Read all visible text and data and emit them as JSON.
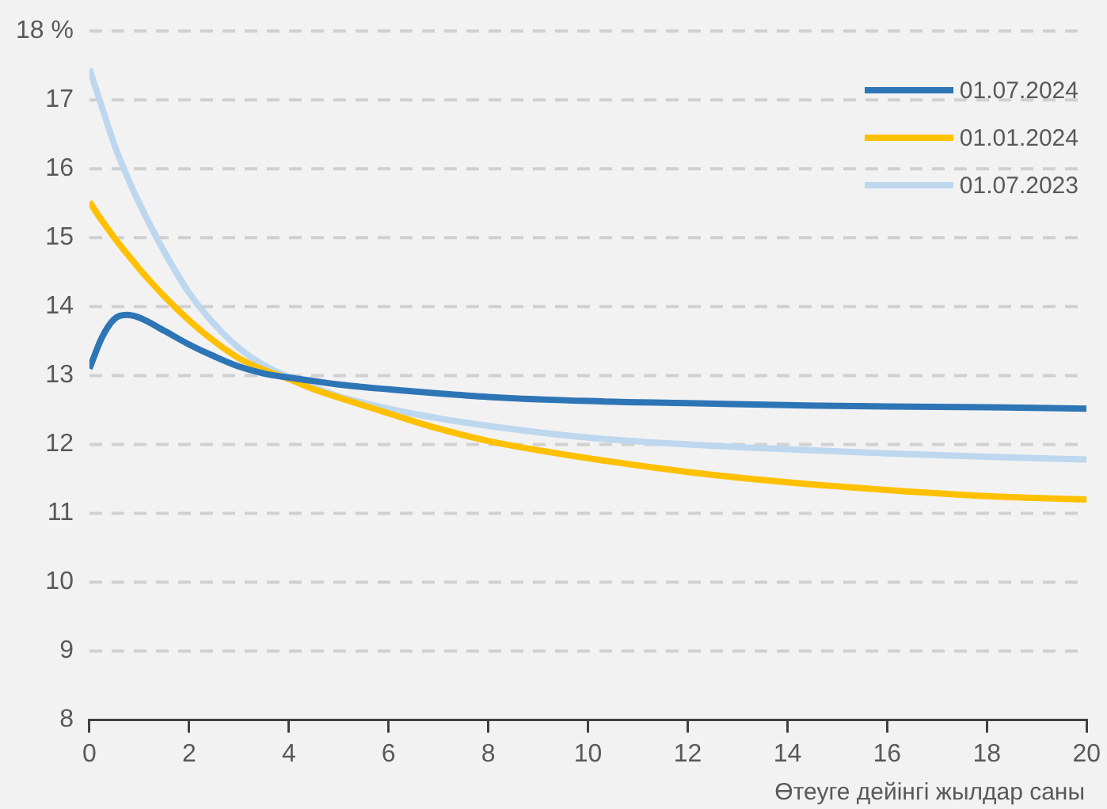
{
  "chart_data": {
    "type": "line",
    "xlabel": "Өтеуге дейінгі жылдар саны",
    "xlim": [
      0,
      20
    ],
    "xticks": [
      0,
      2,
      4,
      6,
      8,
      10,
      12,
      14,
      16,
      18,
      20
    ],
    "ylim": [
      8,
      18
    ],
    "yticks": [
      8,
      9,
      10,
      11,
      12,
      13,
      14,
      15,
      16,
      17,
      {
        "value": 18,
        "label": "18 %"
      }
    ],
    "grid": "y",
    "legend": "top right",
    "marker": "none",
    "line_style": "solid",
    "x": [
      0,
      0.25,
      0.5,
      0.75,
      1,
      1.5,
      2,
      2.5,
      3,
      3.5,
      4,
      4.5,
      5,
      6,
      7,
      8,
      10,
      12,
      14,
      16,
      18,
      20
    ],
    "series": [
      {
        "name": "01.07.2024",
        "color": "#2e75b6",
        "values": [
          13.1,
          13.55,
          13.82,
          13.88,
          13.84,
          13.65,
          13.45,
          13.28,
          13.13,
          13.03,
          12.97,
          12.92,
          12.87,
          12.8,
          12.74,
          12.69,
          12.63,
          12.6,
          12.57,
          12.55,
          12.54,
          12.52
        ]
      },
      {
        "name": "01.01.2024",
        "color": "#ffc000",
        "values": [
          15.52,
          15.25,
          15.0,
          14.77,
          14.55,
          14.15,
          13.8,
          13.5,
          13.25,
          13.08,
          12.95,
          12.8,
          12.68,
          12.45,
          12.23,
          12.05,
          11.8,
          11.6,
          11.45,
          11.34,
          11.25,
          11.2
        ]
      },
      {
        "name": "01.07.2023",
        "color": "#bdd7ee",
        "values": [
          17.45,
          16.9,
          16.35,
          15.9,
          15.5,
          14.8,
          14.2,
          13.75,
          13.4,
          13.15,
          12.98,
          12.83,
          12.7,
          12.52,
          12.38,
          12.27,
          12.1,
          12.0,
          11.93,
          11.87,
          11.82,
          11.78
        ]
      }
    ]
  }
}
